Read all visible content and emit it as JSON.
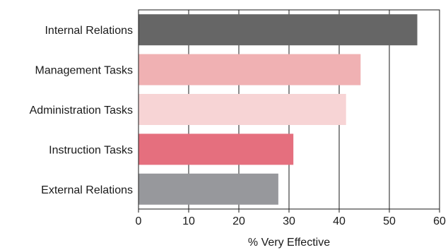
{
  "chart_data": {
    "type": "bar",
    "orientation": "horizontal",
    "title": "",
    "xlabel": "% Very Effective",
    "ylabel": "",
    "xlim": [
      0,
      60
    ],
    "xticks": [
      0,
      10,
      20,
      30,
      40,
      50,
      60
    ],
    "grid": "vertical",
    "legend": "none",
    "categories": [
      "Internal Relations",
      "Management Tasks",
      "Administration Tasks",
      "Instruction Tasks",
      "External Relations"
    ],
    "values": [
      55.5,
      44.2,
      41.3,
      30.8,
      27.8
    ],
    "colors": [
      "#666666",
      "#f0b1b3",
      "#f7d4d5",
      "#e56f7e",
      "#97989c"
    ]
  }
}
